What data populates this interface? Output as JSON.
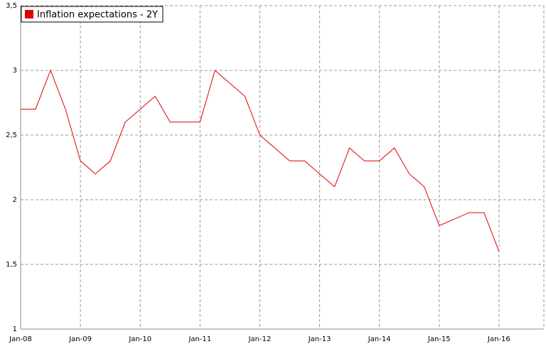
{
  "chart_data": {
    "type": "line",
    "categories": [
      "Jan-08",
      null,
      null,
      null,
      "Jan-09",
      null,
      null,
      null,
      "Jan-10",
      null,
      null,
      null,
      "Jan-11",
      null,
      null,
      null,
      "Jan-12",
      null,
      null,
      null,
      "Jan-13",
      null,
      null,
      null,
      "Jan-14",
      null,
      null,
      null,
      "Jan-15",
      null,
      null,
      null,
      "Jan-16",
      null,
      null,
      null
    ],
    "series": [
      {
        "name": "Inflation expectations - 2Y",
        "color": "#e00000",
        "values": [
          2.7,
          2.7,
          3.0,
          2.7,
          2.3,
          2.2,
          2.3,
          2.6,
          2.7,
          2.8,
          2.6,
          2.6,
          2.6,
          3.0,
          2.9,
          2.8,
          2.5,
          2.4,
          2.3,
          2.3,
          2.2,
          2.1,
          2.4,
          2.3,
          2.3,
          2.4,
          2.2,
          2.1,
          1.8,
          1.85,
          1.9,
          1.9,
          1.6,
          null,
          null,
          null
        ]
      }
    ],
    "ylim": [
      1,
      3.5
    ],
    "yticks": [
      1,
      {
        "value": 1.5,
        "label": "1,5"
      },
      2,
      {
        "value": 2.5,
        "label": "2,5"
      },
      3,
      {
        "value": 3.5,
        "label": "3,5"
      }
    ],
    "grid": true,
    "legend": "top-left"
  }
}
